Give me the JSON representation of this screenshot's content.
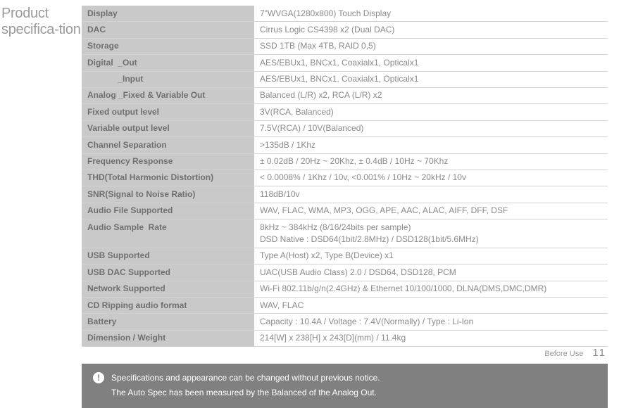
{
  "sideTitle": "Product specifica-tion",
  "table": {
    "label_bg": "#c9c9c9",
    "label_color": "#6f6f6f",
    "value_color": "#8a8a8a",
    "border_color": "#d2d2d2",
    "rows": [
      {
        "label": "Display",
        "value": "7\"WVGA(1280x800) Touch Display"
      },
      {
        "label": "DAC",
        "value": "Cirrus Logic CS4398 x2 (Dual DAC)"
      },
      {
        "label": "Storage",
        "value": "SSD 1TB (Max 4TB, RAID 0,5)"
      },
      {
        "label": "Digital  _Out",
        "value": "AES/EBUx1, BNCx1, Coaxialx1, Opticalx1"
      },
      {
        "label": "             _Input",
        "value": "AES/EBUx1, BNCx1, Coaxialx1, Opticalx1"
      },
      {
        "label": "Analog _Fixed & Variable Out",
        "value": "Balanced (L/R) x2, RCA (L/R) x2"
      },
      {
        "label": "Fixed output level",
        "value": "3V(RCA, Balanced)"
      },
      {
        "label": "Variable output level",
        "value": "7.5V(RCA) / 10V(Balanced)"
      },
      {
        "label": "Channel Separation",
        "value": ">135dB / 1Khz"
      },
      {
        "label": "Frequency Response",
        "value": "± 0.02dB / 20Hz ~ 20Khz, ± 0.4dB / 10Hz ~ 70Khz"
      },
      {
        "label": "THD(Total Harmonic Distortion)",
        "value": "< 0.0008% / 1Khz / 10v, <0.001% / 10Hz ~ 20kHz / 10v"
      },
      {
        "label": "SNR(Signal to Noise Ratio)",
        "value": "118dB/10v"
      },
      {
        "label": "Audio File Supported",
        "value": "WAV, FLAC, WMA, MP3, OGG, APE, AAC, ALAC, AIFF, DFF, DSF"
      },
      {
        "label": "Audio Sample  Rate",
        "value": "8kHz ~ 384kHz (8/16/24bits per sample)\nDSD Native : DSD64(1bit/2.8MHz) / DSD128(1bit/5.6MHz)"
      },
      {
        "label": "USB Supported",
        "value": "Type A(Host) x2, Type B(Device) x1"
      },
      {
        "label": "USB DAC Supported",
        "value": "UAC(USB Audio Class) 2.0 / DSD64, DSD128, PCM"
      },
      {
        "label": "Network Supported",
        "value": "Wi-Fi 802.11b/g/n(2.4GHz) & Ethernet 10/100/1000, DLNA(DMS,DMC,DMR)"
      },
      {
        "label": "CD Ripping audio format",
        "value": "WAV, FLAC"
      },
      {
        "label": "Battery",
        "value": "Capacity : 10.4A / Voltage : 7.4V(Normally) / Type : Li-Ion"
      },
      {
        "label": "Dimension / Weight",
        "value": "214[W] x 238[H] x 243[D](mm) / 11.4kg"
      }
    ]
  },
  "notice": {
    "bg": "#808080",
    "text_color": "#ffffff",
    "icon": "!",
    "line1": "Specifications and appearance can be changed without previous notice.",
    "line2": "The Auto Spec has been measured by the Balanced of the Analog Out."
  },
  "footer": {
    "section": "Before Use",
    "page": "11"
  }
}
